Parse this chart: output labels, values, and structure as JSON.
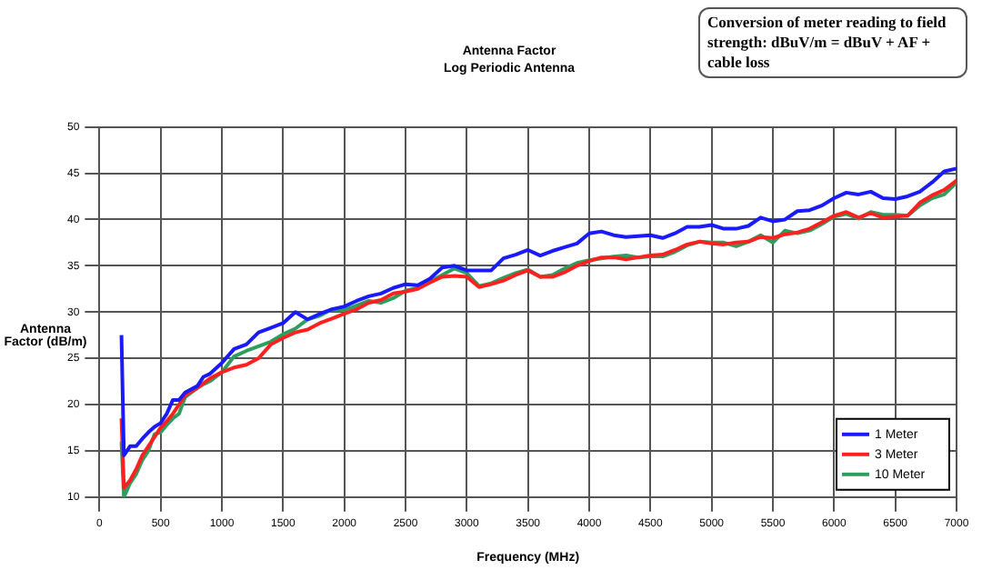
{
  "chart_data": {
    "type": "line",
    "title": "Antenna Factor",
    "subtitle": "Log Periodic Antenna",
    "xlabel": "Frequency (MHz)",
    "ylabel": "Antenna Factor (dB/m)",
    "annotations": [
      "Conversion of meter reading to field strength: dBuV/m = dBuV + AF + cable loss"
    ],
    "x": [
      180,
      200,
      250,
      300,
      350,
      400,
      450,
      500,
      550,
      600,
      650,
      700,
      800,
      850,
      900,
      1000,
      1100,
      1200,
      1300,
      1400,
      1500,
      1600,
      1700,
      1800,
      1900,
      2000,
      2100,
      2200,
      2300,
      2400,
      2500,
      2600,
      2700,
      2800,
      2900,
      3000,
      3100,
      3200,
      3300,
      3400,
      3500,
      3600,
      3700,
      3800,
      3900,
      4000,
      4100,
      4200,
      4300,
      4400,
      4500,
      4600,
      4700,
      4800,
      4900,
      5000,
      5100,
      5200,
      5300,
      5400,
      5500,
      5600,
      5700,
      5800,
      5900,
      6000,
      6100,
      6200,
      6300,
      6400,
      6500,
      6600,
      6700,
      6800,
      6900,
      7000
    ],
    "series": [
      {
        "name": "1 Meter",
        "color": "#1a1aff",
        "values": [
          27.5,
          14.5,
          15.5,
          15.5,
          16.3,
          17,
          17.6,
          18,
          19,
          20.5,
          20.5,
          21.3,
          22,
          23,
          23.3,
          24.5,
          26,
          26.5,
          27.8,
          28.3,
          28.8,
          30,
          29.2,
          29.8,
          30.3,
          30.6,
          31.2,
          31.7,
          32,
          32.6,
          33,
          32.9,
          33.6,
          34.8,
          35,
          34.5,
          34.5,
          34.5,
          35.8,
          36.2,
          36.7,
          36.1,
          36.6,
          37,
          37.4,
          38.5,
          38.7,
          38.3,
          38.1,
          38.2,
          38.3,
          38,
          38.5,
          39.2,
          39.2,
          39.4,
          39,
          39,
          39.3,
          40.2,
          39.8,
          40,
          40.9,
          41,
          41.5,
          42.3,
          42.9,
          42.7,
          43,
          42.3,
          42.2,
          42.5,
          43,
          44,
          45.2,
          45.5
        ]
      },
      {
        "name": "3 Meter",
        "color": "#ff2020",
        "values": [
          18.5,
          11,
          11.8,
          13,
          14.5,
          15.5,
          16.5,
          17.5,
          18.2,
          19,
          20,
          21,
          21.8,
          22.3,
          22.8,
          23.5,
          24,
          24.3,
          25,
          26.5,
          27.2,
          27.8,
          28.1,
          28.8,
          29.3,
          29.8,
          30.3,
          31,
          31.3,
          32,
          32.2,
          32.5,
          33.2,
          33.8,
          33.9,
          33.8,
          32.7,
          33,
          33.4,
          34,
          34.5,
          33.8,
          33.8,
          34.3,
          35,
          35.5,
          35.9,
          35.9,
          35.7,
          35.9,
          36.1,
          36.2,
          36.7,
          37.3,
          37.6,
          37.4,
          37.3,
          37.5,
          37.6,
          38.1,
          38,
          38.4,
          38.6,
          39,
          39.7,
          40.4,
          40.8,
          40.2,
          40.7,
          40.2,
          40.3,
          40.4,
          41.8,
          42.6,
          43.2,
          44.2
        ]
      },
      {
        "name": "10 Meter",
        "color": "#2e9e5e",
        "values": [
          16,
          10,
          11.5,
          12.5,
          14,
          15,
          16.8,
          17,
          17.8,
          18.5,
          19,
          20.8,
          21.8,
          22.2,
          22.5,
          23.5,
          25.2,
          25.8,
          26.3,
          26.8,
          27.6,
          28.2,
          29.2,
          29.6,
          30.3,
          30.2,
          30.7,
          31.2,
          31,
          31.5,
          32.3,
          32.6,
          33.3,
          34,
          34.7,
          34.2,
          32.8,
          33.1,
          33.7,
          34.2,
          34.6,
          33.8,
          34,
          34.7,
          35.3,
          35.6,
          35.8,
          36,
          36.1,
          35.9,
          36,
          36,
          36.5,
          37.2,
          37.6,
          37.5,
          37.5,
          37.1,
          37.6,
          38.3,
          37.5,
          38.8,
          38.5,
          38.8,
          39.5,
          40.3,
          40.6,
          40.1,
          40.8,
          40.5,
          40.5,
          40.4,
          41.5,
          42.3,
          42.7,
          44
        ]
      }
    ],
    "xlim": [
      0,
      7000
    ],
    "xticks": [
      0,
      500,
      1000,
      1500,
      2000,
      2500,
      3000,
      3500,
      4000,
      4500,
      5000,
      5500,
      6000,
      6500,
      7000
    ],
    "ylim": [
      10,
      50
    ],
    "yticks": [
      10,
      15,
      20,
      25,
      30,
      35,
      40,
      45,
      50
    ],
    "grid": true,
    "legend": "bottom right",
    "marker": "none",
    "line_style": "solid"
  }
}
